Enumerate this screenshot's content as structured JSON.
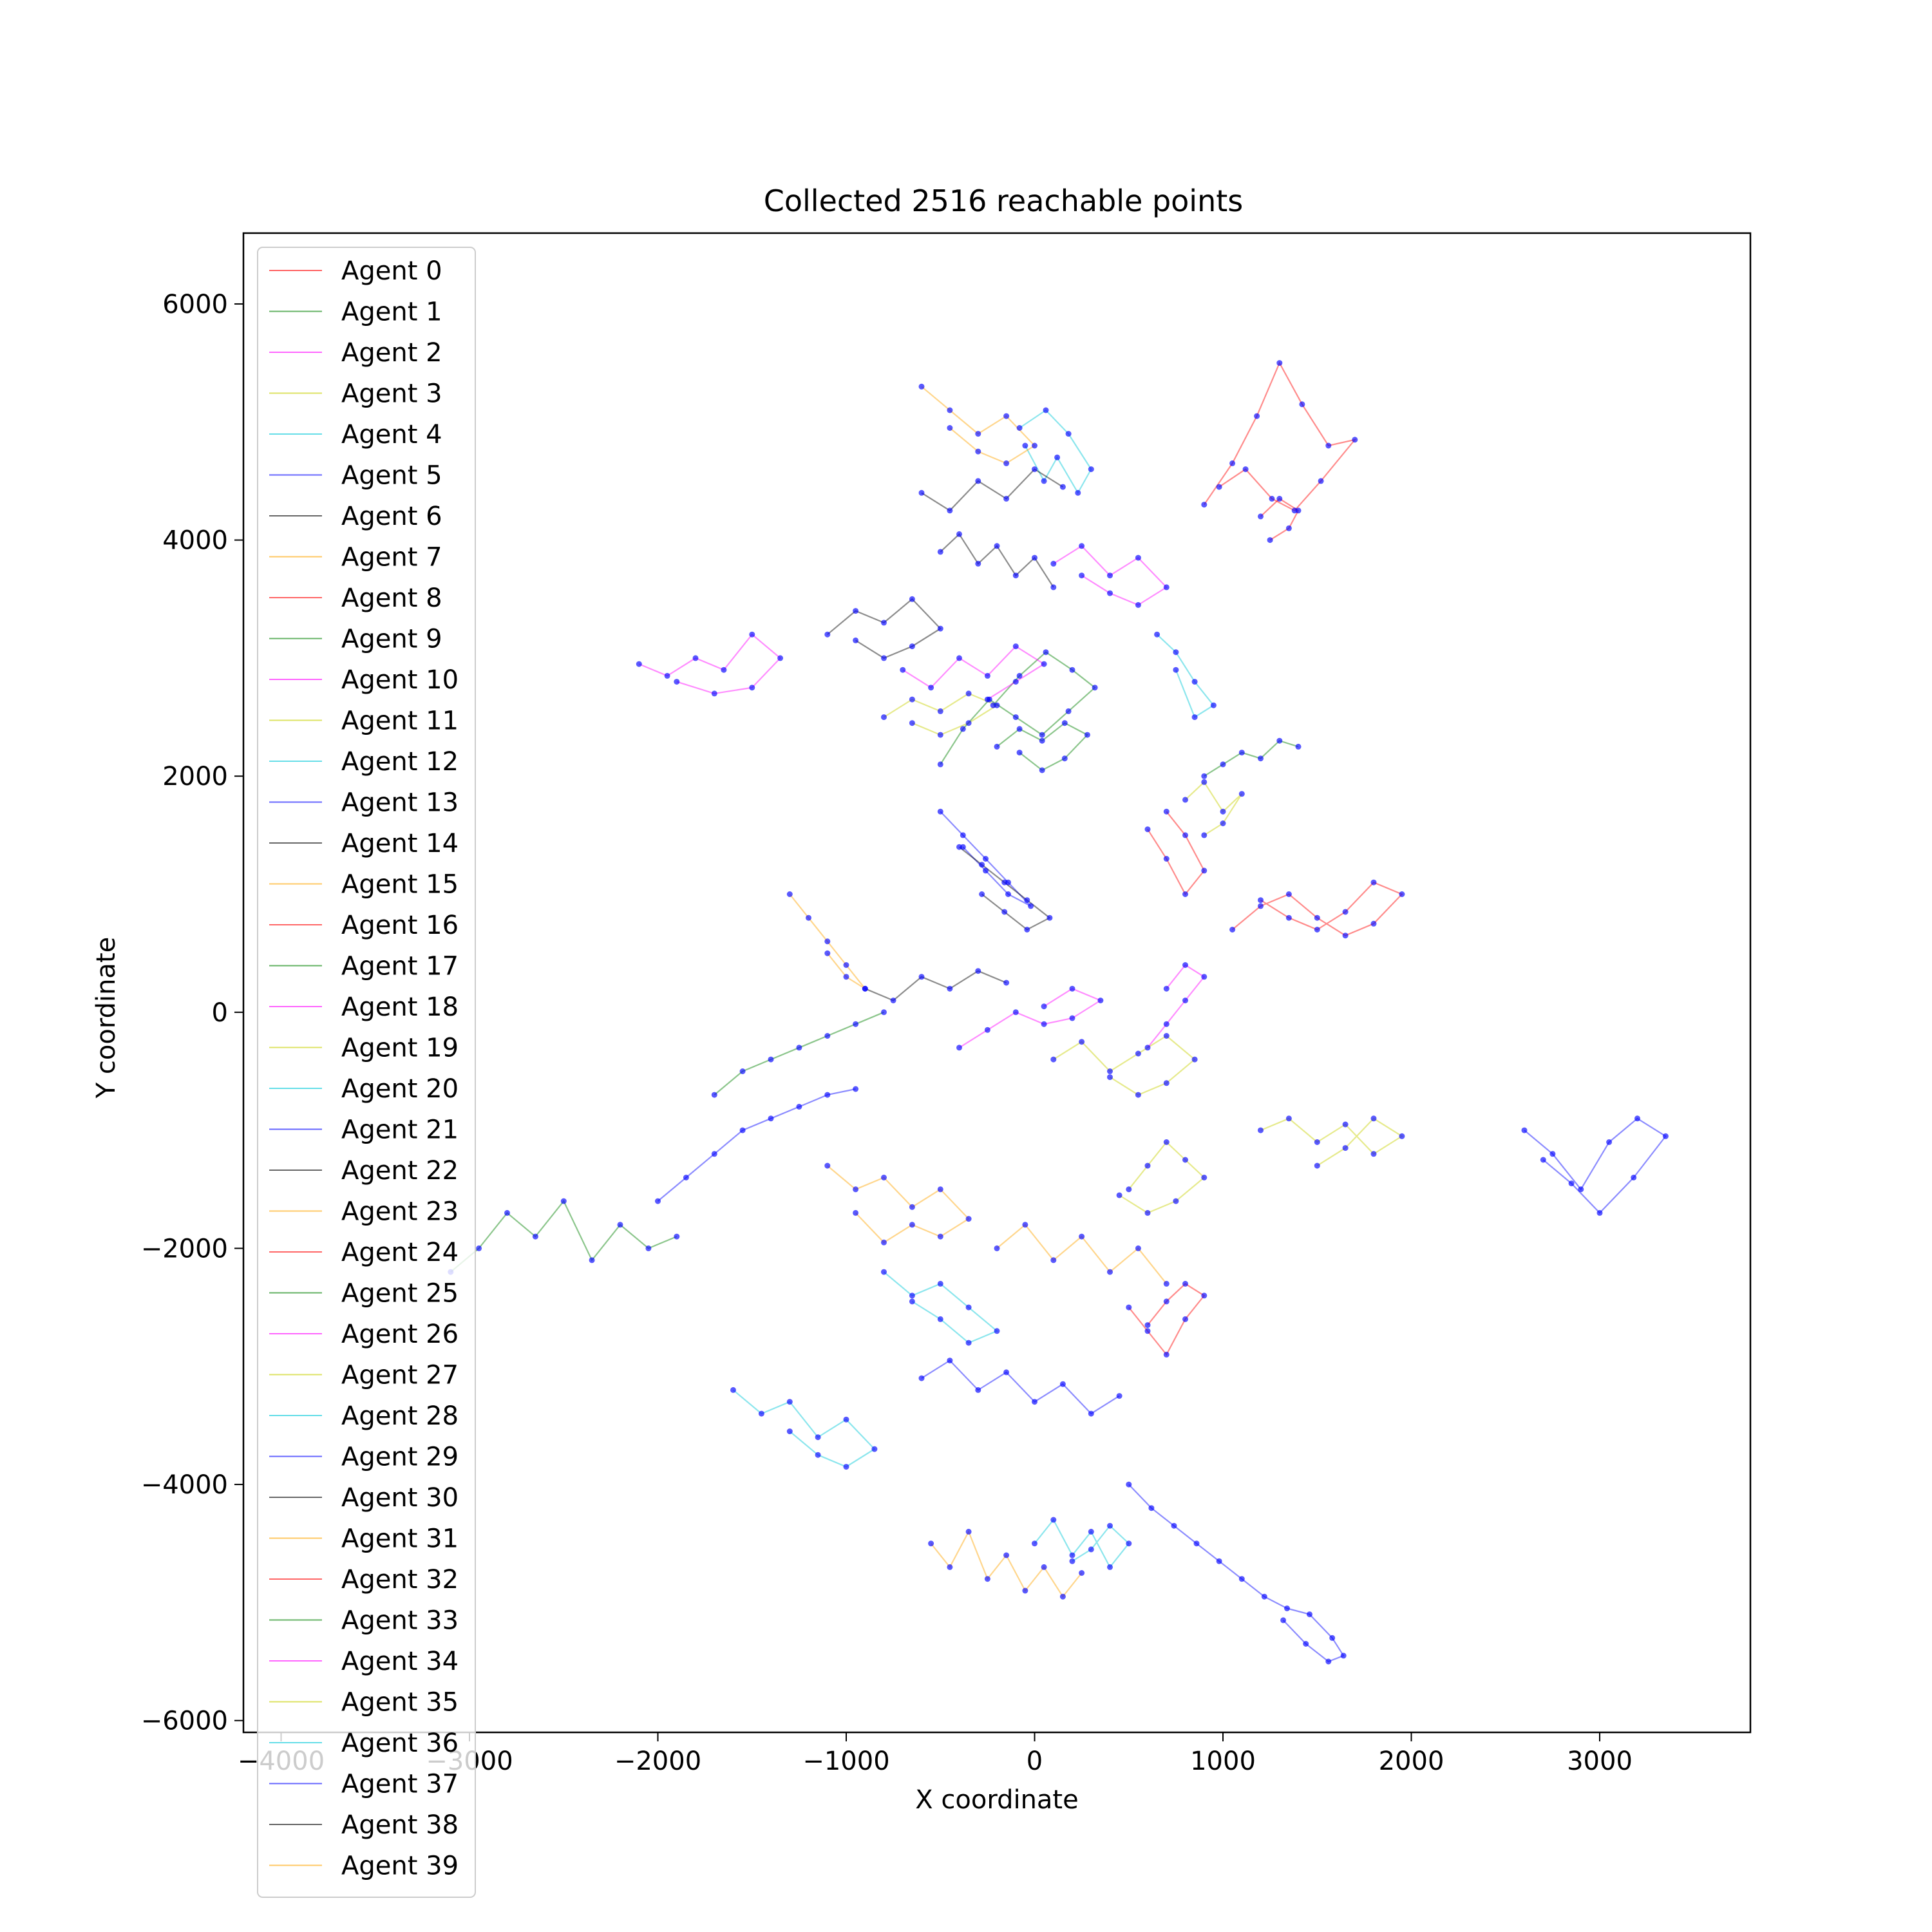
{
  "chart_data": {
    "type": "scatter",
    "title": "Collected 2516 reachable points",
    "xlabel": "X coordinate",
    "ylabel": "Y coordinate",
    "xlim": [
      -4200,
      3800
    ],
    "ylim": [
      -6100,
      6600
    ],
    "x_ticks": [
      -4000,
      -3000,
      -2000,
      -1000,
      0,
      1000,
      2000,
      3000
    ],
    "y_ticks": [
      -6000,
      -4000,
      -2000,
      0,
      2000,
      4000,
      6000
    ],
    "x_tick_labels": [
      "−4000",
      "−3000",
      "−2000",
      "−1000",
      "0",
      "1000",
      "2000",
      "3000"
    ],
    "y_tick_labels": [
      "−6000",
      "−4000",
      "−2000",
      "0",
      "2000",
      "4000",
      "6000"
    ],
    "grid": false,
    "legend_position": "top-left",
    "point_color": "#0000ff",
    "agent_colors": [
      "#ff0000",
      "#008000",
      "#ff00ff",
      "#c8d000",
      "#00c8d8",
      "#0000ff",
      "#000000",
      "#ffa500"
    ],
    "series": [
      {
        "name": "Agent 0",
        "x": [
          900,
          1050,
          1180,
          1300,
          1420,
          1560,
          1700,
          1520,
          1380,
          1260,
          1120,
          980
        ],
        "y": [
          4300,
          4650,
          5050,
          5500,
          5150,
          4800,
          4850,
          4500,
          4250,
          4350,
          4600,
          4450
        ]
      },
      {
        "name": "Agent 1",
        "x": [
          -500,
          -380,
          -240,
          -100,
          40,
          180,
          320,
          200,
          60,
          -80,
          -220
        ],
        "y": [
          2100,
          2400,
          2650,
          2500,
          2350,
          2550,
          2750,
          2900,
          3050,
          2850,
          2600
        ]
      },
      {
        "name": "Agent 2",
        "x": [
          -2100,
          -1950,
          -1800,
          -1650,
          -1500,
          -1350,
          -1500,
          -1700,
          -1900
        ],
        "y": [
          2950,
          2850,
          3000,
          2900,
          3200,
          3000,
          2750,
          2700,
          2800
        ]
      },
      {
        "name": "Agent 3",
        "x": [
          500,
          600,
          700,
          800,
          900,
          750,
          600,
          450
        ],
        "y": [
          -1500,
          -1300,
          -1100,
          -1250,
          -1400,
          -1600,
          -1700,
          -1550
        ]
      },
      {
        "name": "Agent 4",
        "x": [
          -50,
          50,
          120,
          230,
          300,
          180,
          60,
          -80
        ],
        "y": [
          4800,
          4500,
          4700,
          4400,
          4600,
          4900,
          5100,
          4950
        ]
      },
      {
        "name": "Agent 5",
        "x": [
          2600,
          2750,
          2900,
          3050,
          3200,
          3350,
          3180,
          3000,
          2850,
          2700
        ],
        "y": [
          -1000,
          -1200,
          -1500,
          -1100,
          -900,
          -1050,
          -1400,
          -1700,
          -1450,
          -1250
        ]
      },
      {
        "name": "Agent 6",
        "x": [
          -1100,
          -950,
          -800,
          -650,
          -500,
          -650,
          -800,
          -950
        ],
        "y": [
          3200,
          3400,
          3300,
          3500,
          3250,
          3100,
          3000,
          3150
        ]
      },
      {
        "name": "Agent 7",
        "x": [
          -600,
          -450,
          -300,
          -150,
          0,
          -150,
          -300,
          -450
        ],
        "y": [
          5300,
          5100,
          4900,
          5050,
          4800,
          4650,
          4750,
          4950
        ]
      },
      {
        "name": "Agent 8",
        "x": [
          700,
          800,
          900,
          800,
          700,
          600
        ],
        "y": [
          1700,
          1500,
          1200,
          1000,
          1300,
          1550
        ]
      },
      {
        "name": "Agent 9",
        "x": [
          -200,
          -80,
          40,
          160,
          280,
          160,
          40,
          -80
        ],
        "y": [
          2250,
          2400,
          2300,
          2450,
          2350,
          2150,
          2050,
          2200
        ]
      },
      {
        "name": "Agent 10",
        "x": [
          100,
          250,
          400,
          550,
          700,
          550,
          400,
          250
        ],
        "y": [
          3800,
          3950,
          3700,
          3850,
          3600,
          3450,
          3550,
          3700
        ]
      },
      {
        "name": "Agent 11",
        "x": [
          -800,
          -650,
          -500,
          -350,
          -200,
          -350,
          -500,
          -650
        ],
        "y": [
          2500,
          2650,
          2550,
          2700,
          2600,
          2450,
          2350,
          2450
        ]
      },
      {
        "name": "Agent 12",
        "x": [
          650,
          750,
          850,
          950,
          850,
          750
        ],
        "y": [
          3200,
          3050,
          2800,
          2600,
          2500,
          2900
        ]
      },
      {
        "name": "Agent 13",
        "x": [
          -500,
          -380,
          -260,
          -140,
          -20,
          -140,
          -260,
          -380
        ],
        "y": [
          1700,
          1500,
          1300,
          1100,
          900,
          1000,
          1200,
          1400
        ]
      },
      {
        "name": "Agent 14",
        "x": [
          -400,
          -280,
          -160,
          -40,
          80,
          -40,
          -160,
          -280
        ],
        "y": [
          1400,
          1250,
          1100,
          950,
          800,
          700,
          850,
          1000
        ]
      },
      {
        "name": "Agent 15",
        "x": [
          -1300,
          -1200,
          -1100,
          -1000,
          -900,
          -1000,
          -1100
        ],
        "y": [
          1000,
          800,
          600,
          400,
          200,
          300,
          500
        ]
      },
      {
        "name": "Agent 16",
        "x": [
          1050,
          1200,
          1350,
          1500,
          1650,
          1800,
          1950,
          1800,
          1650,
          1500,
          1350,
          1200
        ],
        "y": [
          700,
          900,
          1000,
          800,
          650,
          750,
          1000,
          1100,
          850,
          700,
          800,
          950
        ]
      },
      {
        "name": "Agent 17",
        "x": [
          -1700,
          -1550,
          -1400,
          -1250,
          -1100,
          -950,
          -800
        ],
        "y": [
          -700,
          -500,
          -400,
          -300,
          -200,
          -100,
          0
        ]
      },
      {
        "name": "Agent 18",
        "x": [
          -400,
          -250,
          -100,
          50,
          200,
          350,
          200,
          50
        ],
        "y": [
          -300,
          -150,
          0,
          -100,
          -50,
          100,
          200,
          50
        ]
      },
      {
        "name": "Agent 19",
        "x": [
          100,
          250,
          400,
          550,
          700,
          850,
          700,
          550,
          400
        ],
        "y": [
          -400,
          -250,
          -500,
          -350,
          -200,
          -400,
          -600,
          -700,
          -550
        ]
      },
      {
        "name": "Agent 20",
        "x": [
          -800,
          -650,
          -500,
          -350,
          -200,
          -350,
          -500,
          -650
        ],
        "y": [
          -2200,
          -2400,
          -2300,
          -2500,
          -2700,
          -2800,
          -2600,
          -2450
        ]
      },
      {
        "name": "Agent 21",
        "x": [
          -2000,
          -1850,
          -1700,
          -1550,
          -1400,
          -1250,
          -1100,
          -950
        ],
        "y": [
          -1600,
          -1400,
          -1200,
          -1000,
          -900,
          -800,
          -700,
          -650
        ]
      },
      {
        "name": "Agent 22",
        "x": [
          -900,
          -750,
          -600,
          -450,
          -300,
          -150
        ],
        "y": [
          200,
          100,
          300,
          200,
          350,
          250
        ]
      },
      {
        "name": "Agent 23",
        "x": [
          -1100,
          -950,
          -800,
          -650,
          -500,
          -350,
          -500,
          -650,
          -800,
          -950
        ],
        "y": [
          -1300,
          -1500,
          -1400,
          -1650,
          -1500,
          -1750,
          -1900,
          -1800,
          -1950,
          -1700
        ]
      },
      {
        "name": "Agent 24",
        "x": [
          500,
          600,
          700,
          800,
          900,
          800,
          700,
          600
        ],
        "y": [
          -2500,
          -2700,
          -2900,
          -2600,
          -2400,
          -2300,
          -2450,
          -2650
        ]
      },
      {
        "name": "Agent 25",
        "x": [
          -3100,
          -2950,
          -2800,
          -2650,
          -2500,
          -2350,
          -2200,
          -2050,
          -1900
        ],
        "y": [
          -2200,
          -2000,
          -1700,
          -1900,
          -1600,
          -2100,
          -1800,
          -2000,
          -1900
        ]
      },
      {
        "name": "Agent 26",
        "x": [
          600,
          700,
          800,
          900,
          800,
          700
        ],
        "y": [
          -300,
          -100,
          100,
          300,
          400,
          200
        ]
      },
      {
        "name": "Agent 27",
        "x": [
          1200,
          1350,
          1500,
          1650,
          1800,
          1950,
          1800,
          1650,
          1500
        ],
        "y": [
          -1000,
          -900,
          -1100,
          -950,
          -1200,
          -1050,
          -900,
          -1150,
          -1300
        ]
      },
      {
        "name": "Agent 28",
        "x": [
          -1600,
          -1450,
          -1300,
          -1150,
          -1000,
          -850,
          -1000,
          -1150,
          -1300
        ],
        "y": [
          -3200,
          -3400,
          -3300,
          -3600,
          -3450,
          -3700,
          -3850,
          -3750,
          -3550
        ]
      },
      {
        "name": "Agent 29",
        "x": [
          -600,
          -450,
          -300,
          -150,
          0,
          150,
          300,
          450
        ],
        "y": [
          -3100,
          -2950,
          -3200,
          -3050,
          -3300,
          -3150,
          -3400,
          -3250
        ]
      },
      {
        "name": "Agent 30",
        "x": [
          -600,
          -450,
          -300,
          -150,
          0,
          150
        ],
        "y": [
          4400,
          4250,
          4500,
          4350,
          4600,
          4450
        ]
      },
      {
        "name": "Agent 31",
        "x": [
          -200,
          -50,
          100,
          250,
          400,
          550,
          700
        ],
        "y": [
          -2000,
          -1800,
          -2100,
          -1900,
          -2200,
          -2000,
          -2300
        ]
      },
      {
        "name": "Agent 32",
        "x": [
          1200,
          1300,
          1400,
          1350,
          1250
        ],
        "y": [
          4200,
          4350,
          4250,
          4100,
          4000
        ]
      },
      {
        "name": "Agent 33",
        "x": [
          900,
          1000,
          1100,
          1200,
          1300,
          1400
        ],
        "y": [
          2000,
          2100,
          2200,
          2150,
          2300,
          2250
        ]
      },
      {
        "name": "Agent 34",
        "x": [
          -700,
          -550,
          -400,
          -250,
          -100,
          50,
          -100,
          -250
        ],
        "y": [
          2900,
          2750,
          3000,
          2850,
          3100,
          2950,
          2800,
          2650
        ]
      },
      {
        "name": "Agent 35",
        "x": [
          800,
          900,
          1000,
          1100,
          1000,
          900
        ],
        "y": [
          1800,
          1950,
          1700,
          1850,
          1600,
          1500
        ]
      },
      {
        "name": "Agent 36",
        "x": [
          0,
          100,
          200,
          300,
          400,
          500,
          400,
          300,
          200
        ],
        "y": [
          -4500,
          -4300,
          -4600,
          -4400,
          -4700,
          -4500,
          -4350,
          -4550,
          -4650
        ]
      },
      {
        "name": "Agent 37",
        "x": [
          500,
          620,
          740,
          860,
          980,
          1100,
          1220,
          1340,
          1460,
          1580,
          1640,
          1560,
          1440,
          1320
        ],
        "y": [
          -4000,
          -4200,
          -4350,
          -4500,
          -4650,
          -4800,
          -4950,
          -5050,
          -5100,
          -5300,
          -5450,
          -5500,
          -5350,
          -5150
        ]
      },
      {
        "name": "Agent 38",
        "x": [
          -500,
          -400,
          -300,
          -200,
          -100,
          0,
          100
        ],
        "y": [
          3900,
          4050,
          3800,
          3950,
          3700,
          3850,
          3600
        ]
      },
      {
        "name": "Agent 39",
        "x": [
          -550,
          -450,
          -350,
          -250,
          -150,
          -50,
          50,
          150,
          250
        ],
        "y": [
          -4500,
          -4700,
          -4400,
          -4800,
          -4600,
          -4900,
          -4700,
          -4950,
          -4750
        ]
      }
    ]
  }
}
